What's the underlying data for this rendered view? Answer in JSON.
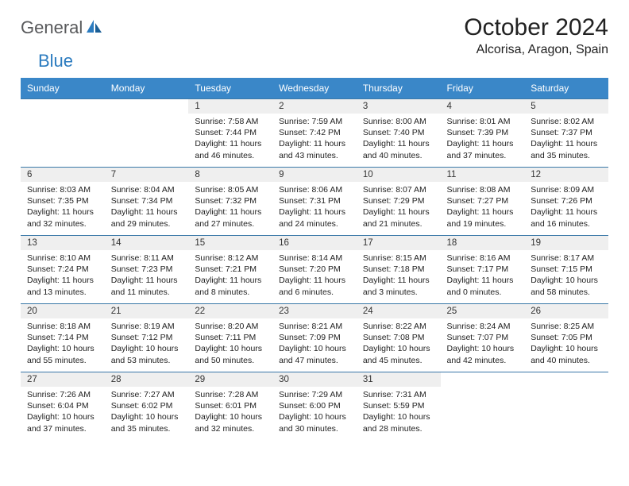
{
  "logo": {
    "general": "General",
    "blue": "Blue"
  },
  "title": "October 2024",
  "subtitle": "Alcorisa, Aragon, Spain",
  "colors": {
    "header_bg": "#3a87c8",
    "header_text": "#ffffff",
    "row_border": "#3a78a8",
    "daynum_bg": "#efefef",
    "logo_gray": "#58595b",
    "logo_blue": "#2b7bbf"
  },
  "weekdays": [
    "Sunday",
    "Monday",
    "Tuesday",
    "Wednesday",
    "Thursday",
    "Friday",
    "Saturday"
  ],
  "weeks": [
    [
      null,
      null,
      {
        "n": "1",
        "sr": "Sunrise: 7:58 AM",
        "ss": "Sunset: 7:44 PM",
        "d1": "Daylight: 11 hours",
        "d2": "and 46 minutes."
      },
      {
        "n": "2",
        "sr": "Sunrise: 7:59 AM",
        "ss": "Sunset: 7:42 PM",
        "d1": "Daylight: 11 hours",
        "d2": "and 43 minutes."
      },
      {
        "n": "3",
        "sr": "Sunrise: 8:00 AM",
        "ss": "Sunset: 7:40 PM",
        "d1": "Daylight: 11 hours",
        "d2": "and 40 minutes."
      },
      {
        "n": "4",
        "sr": "Sunrise: 8:01 AM",
        "ss": "Sunset: 7:39 PM",
        "d1": "Daylight: 11 hours",
        "d2": "and 37 minutes."
      },
      {
        "n": "5",
        "sr": "Sunrise: 8:02 AM",
        "ss": "Sunset: 7:37 PM",
        "d1": "Daylight: 11 hours",
        "d2": "and 35 minutes."
      }
    ],
    [
      {
        "n": "6",
        "sr": "Sunrise: 8:03 AM",
        "ss": "Sunset: 7:35 PM",
        "d1": "Daylight: 11 hours",
        "d2": "and 32 minutes."
      },
      {
        "n": "7",
        "sr": "Sunrise: 8:04 AM",
        "ss": "Sunset: 7:34 PM",
        "d1": "Daylight: 11 hours",
        "d2": "and 29 minutes."
      },
      {
        "n": "8",
        "sr": "Sunrise: 8:05 AM",
        "ss": "Sunset: 7:32 PM",
        "d1": "Daylight: 11 hours",
        "d2": "and 27 minutes."
      },
      {
        "n": "9",
        "sr": "Sunrise: 8:06 AM",
        "ss": "Sunset: 7:31 PM",
        "d1": "Daylight: 11 hours",
        "d2": "and 24 minutes."
      },
      {
        "n": "10",
        "sr": "Sunrise: 8:07 AM",
        "ss": "Sunset: 7:29 PM",
        "d1": "Daylight: 11 hours",
        "d2": "and 21 minutes."
      },
      {
        "n": "11",
        "sr": "Sunrise: 8:08 AM",
        "ss": "Sunset: 7:27 PM",
        "d1": "Daylight: 11 hours",
        "d2": "and 19 minutes."
      },
      {
        "n": "12",
        "sr": "Sunrise: 8:09 AM",
        "ss": "Sunset: 7:26 PM",
        "d1": "Daylight: 11 hours",
        "d2": "and 16 minutes."
      }
    ],
    [
      {
        "n": "13",
        "sr": "Sunrise: 8:10 AM",
        "ss": "Sunset: 7:24 PM",
        "d1": "Daylight: 11 hours",
        "d2": "and 13 minutes."
      },
      {
        "n": "14",
        "sr": "Sunrise: 8:11 AM",
        "ss": "Sunset: 7:23 PM",
        "d1": "Daylight: 11 hours",
        "d2": "and 11 minutes."
      },
      {
        "n": "15",
        "sr": "Sunrise: 8:12 AM",
        "ss": "Sunset: 7:21 PM",
        "d1": "Daylight: 11 hours",
        "d2": "and 8 minutes."
      },
      {
        "n": "16",
        "sr": "Sunrise: 8:14 AM",
        "ss": "Sunset: 7:20 PM",
        "d1": "Daylight: 11 hours",
        "d2": "and 6 minutes."
      },
      {
        "n": "17",
        "sr": "Sunrise: 8:15 AM",
        "ss": "Sunset: 7:18 PM",
        "d1": "Daylight: 11 hours",
        "d2": "and 3 minutes."
      },
      {
        "n": "18",
        "sr": "Sunrise: 8:16 AM",
        "ss": "Sunset: 7:17 PM",
        "d1": "Daylight: 11 hours",
        "d2": "and 0 minutes."
      },
      {
        "n": "19",
        "sr": "Sunrise: 8:17 AM",
        "ss": "Sunset: 7:15 PM",
        "d1": "Daylight: 10 hours",
        "d2": "and 58 minutes."
      }
    ],
    [
      {
        "n": "20",
        "sr": "Sunrise: 8:18 AM",
        "ss": "Sunset: 7:14 PM",
        "d1": "Daylight: 10 hours",
        "d2": "and 55 minutes."
      },
      {
        "n": "21",
        "sr": "Sunrise: 8:19 AM",
        "ss": "Sunset: 7:12 PM",
        "d1": "Daylight: 10 hours",
        "d2": "and 53 minutes."
      },
      {
        "n": "22",
        "sr": "Sunrise: 8:20 AM",
        "ss": "Sunset: 7:11 PM",
        "d1": "Daylight: 10 hours",
        "d2": "and 50 minutes."
      },
      {
        "n": "23",
        "sr": "Sunrise: 8:21 AM",
        "ss": "Sunset: 7:09 PM",
        "d1": "Daylight: 10 hours",
        "d2": "and 47 minutes."
      },
      {
        "n": "24",
        "sr": "Sunrise: 8:22 AM",
        "ss": "Sunset: 7:08 PM",
        "d1": "Daylight: 10 hours",
        "d2": "and 45 minutes."
      },
      {
        "n": "25",
        "sr": "Sunrise: 8:24 AM",
        "ss": "Sunset: 7:07 PM",
        "d1": "Daylight: 10 hours",
        "d2": "and 42 minutes."
      },
      {
        "n": "26",
        "sr": "Sunrise: 8:25 AM",
        "ss": "Sunset: 7:05 PM",
        "d1": "Daylight: 10 hours",
        "d2": "and 40 minutes."
      }
    ],
    [
      {
        "n": "27",
        "sr": "Sunrise: 7:26 AM",
        "ss": "Sunset: 6:04 PM",
        "d1": "Daylight: 10 hours",
        "d2": "and 37 minutes."
      },
      {
        "n": "28",
        "sr": "Sunrise: 7:27 AM",
        "ss": "Sunset: 6:02 PM",
        "d1": "Daylight: 10 hours",
        "d2": "and 35 minutes."
      },
      {
        "n": "29",
        "sr": "Sunrise: 7:28 AM",
        "ss": "Sunset: 6:01 PM",
        "d1": "Daylight: 10 hours",
        "d2": "and 32 minutes."
      },
      {
        "n": "30",
        "sr": "Sunrise: 7:29 AM",
        "ss": "Sunset: 6:00 PM",
        "d1": "Daylight: 10 hours",
        "d2": "and 30 minutes."
      },
      {
        "n": "31",
        "sr": "Sunrise: 7:31 AM",
        "ss": "Sunset: 5:59 PM",
        "d1": "Daylight: 10 hours",
        "d2": "and 28 minutes."
      },
      null,
      null
    ]
  ]
}
